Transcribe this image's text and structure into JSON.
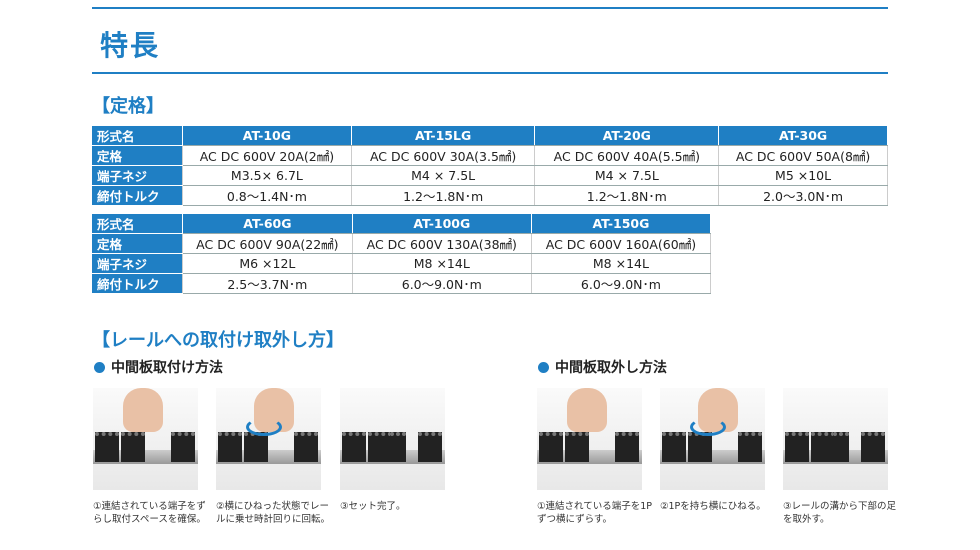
{
  "title": "特長",
  "spec_heading": "【定格】",
  "row_labels": [
    "形式名",
    "定格",
    "端子ネジ",
    "締付トルク"
  ],
  "table1": {
    "models": [
      "AT-10G",
      "AT-15LG",
      "AT-20G",
      "AT-30G"
    ],
    "rating": [
      "AC DC 600V 20A(2㎟)",
      "AC DC 600V 30A(3.5㎟)",
      "AC DC 600V 40A(5.5㎟)",
      "AC DC 600V 50A(8㎟)"
    ],
    "screw": [
      "M3.5× 6.7L",
      "M4 × 7.5L",
      "M4 × 7.5L",
      "M5 ×10L"
    ],
    "torque": [
      "0.8～1.4N･m",
      "1.2～1.8N･m",
      "1.2～1.8N･m",
      "2.0～3.0N･m"
    ]
  },
  "table2": {
    "models": [
      "AT-60G",
      "AT-100G",
      "AT-150G"
    ],
    "rating": [
      "AC DC 600V 90A(22㎟)",
      "AC DC 600V 130A(38㎟)",
      "AC DC 600V 160A(60㎟)"
    ],
    "screw": [
      "M6 ×12L",
      "M8 ×14L",
      "M8 ×14L"
    ],
    "torque": [
      "2.5～3.7N･m",
      "6.0～9.0N･m",
      "6.0～9.0N･m"
    ]
  },
  "rail_heading": "【レールへの取付け取外し方】",
  "mount": {
    "heading": "中間板取付け方法",
    "steps": [
      "①連結されている端子をずらし取付スペースを確保。",
      "②横にひねった状態でレールに乗せ時計回りに回転。",
      "③セット完了。"
    ]
  },
  "remove": {
    "heading": "中間板取外し方法",
    "steps": [
      "①連結されている端子を1Pずつ横にずらす。",
      "②1Pを持ち横にひねる。",
      "③レールの溝から下部の足を取外す。"
    ]
  },
  "accent": "#1f7fc4"
}
